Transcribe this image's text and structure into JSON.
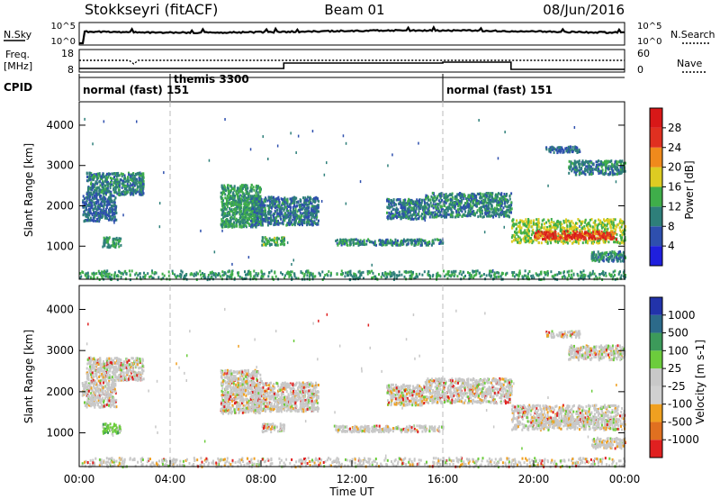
{
  "header": {
    "title": "Stokkseyri (fitACF)",
    "beam": "Beam 01",
    "date": "08/Jun/2016"
  },
  "nsky_panel": {
    "left_label": "N.Sky",
    "right_label": "N.Search",
    "left_ticks": [
      "10^5",
      "10^0"
    ],
    "right_ticks": [
      "10^5",
      "10^0"
    ]
  },
  "freq_panel": {
    "left_label_line1": "Freq.",
    "left_label_line2": "[MHz]",
    "right_label": "Nave",
    "left_ticks": [
      "18",
      "8"
    ],
    "right_ticks": [
      "60",
      "0"
    ]
  },
  "cpid_panel": {
    "label": "CPID",
    "segments": [
      {
        "start": 0,
        "end": 4,
        "text": "normal (fast) 151"
      },
      {
        "start": 4,
        "end": 16,
        "text": "themis 3300"
      },
      {
        "start": 16,
        "end": 24,
        "text": "normal (fast) 151"
      }
    ]
  },
  "x_axis": {
    "label": "Time UT",
    "ticks": [
      "00:00",
      "04:00",
      "08:00",
      "12:00",
      "16:00",
      "20:00",
      "00:00"
    ],
    "range_hours": [
      0,
      24
    ]
  },
  "power_panel": {
    "ylabel": "Slant Range [km]",
    "y_ticks": [
      "1000",
      "2000",
      "3000",
      "4000"
    ],
    "colorbar_label": "Power [dB]",
    "colorbar_ticks": [
      "4",
      "8",
      "12",
      "16",
      "20",
      "24",
      "28"
    ],
    "colors": [
      "#1f1fdd",
      "#2e4fae",
      "#2e7f7a",
      "#3fae4a",
      "#ddcc22",
      "#f08a1c",
      "#e03020",
      "#d81818"
    ]
  },
  "velocity_panel": {
    "ylabel": "Slant Range [km]",
    "y_ticks": [
      "1000",
      "2000",
      "3000",
      "4000"
    ],
    "colorbar_label": "Velocity [m s-1]",
    "colorbar_ticks": [
      "1000",
      "500",
      "100",
      "25",
      "-25",
      "-100",
      "-500",
      "-1000"
    ],
    "colors": [
      "#2233aa",
      "#2c6a8a",
      "#3c9a5a",
      "#6ccc3c",
      "#c8c8c8",
      "#d0d0d0",
      "#f0a020",
      "#e07020",
      "#e02020"
    ]
  },
  "chart_data": {
    "type": "heatmap",
    "x_range_hours": [
      0,
      24
    ],
    "y_range_km": [
      180,
      4580
    ],
    "echo_regions": [
      {
        "t0": 0.0,
        "t1": 24.0,
        "r0": 200,
        "r1": 420,
        "power": 10,
        "velocity": 60
      },
      {
        "t0": 0.3,
        "t1": 2.8,
        "r0": 2300,
        "r1": 2850,
        "power": 8,
        "velocity": 0
      },
      {
        "t0": 0.1,
        "t1": 1.6,
        "r0": 1650,
        "r1": 2300,
        "power": 6,
        "velocity": 0
      },
      {
        "t0": 1.0,
        "t1": 1.8,
        "r0": 1000,
        "r1": 1250,
        "power": 10,
        "velocity": 200
      },
      {
        "t0": 6.2,
        "t1": 8.0,
        "r0": 1500,
        "r1": 2550,
        "power": 10,
        "velocity": 0
      },
      {
        "t0": 7.5,
        "t1": 10.5,
        "r0": 1550,
        "r1": 2250,
        "power": 7,
        "velocity": 0
      },
      {
        "t0": 8.0,
        "t1": 9.0,
        "r0": 1050,
        "r1": 1250,
        "power": 11,
        "velocity": 0
      },
      {
        "t0": 11.2,
        "t1": 16.0,
        "r0": 1050,
        "r1": 1200,
        "power": 8,
        "velocity": 0
      },
      {
        "t0": 13.5,
        "t1": 15.2,
        "r0": 1700,
        "r1": 2200,
        "power": 7,
        "velocity": 0
      },
      {
        "t0": 15.2,
        "t1": 19.0,
        "r0": 1750,
        "r1": 2350,
        "power": 8,
        "velocity": 0
      },
      {
        "t0": 19.0,
        "t1": 24.0,
        "r0": 1100,
        "r1": 1700,
        "power": 14,
        "velocity": 0
      },
      {
        "t0": 20.0,
        "t1": 23.6,
        "r0": 1200,
        "r1": 1400,
        "power": 24,
        "velocity": 0
      },
      {
        "t0": 21.5,
        "t1": 24.0,
        "r0": 2800,
        "r1": 3150,
        "power": 8,
        "velocity": 0
      },
      {
        "t0": 20.5,
        "t1": 22.0,
        "r0": 3350,
        "r1": 3500,
        "power": 6,
        "velocity": 0
      },
      {
        "t0": 22.5,
        "t1": 24.0,
        "r0": 650,
        "r1": 900,
        "power": 8,
        "velocity": 100
      }
    ]
  }
}
